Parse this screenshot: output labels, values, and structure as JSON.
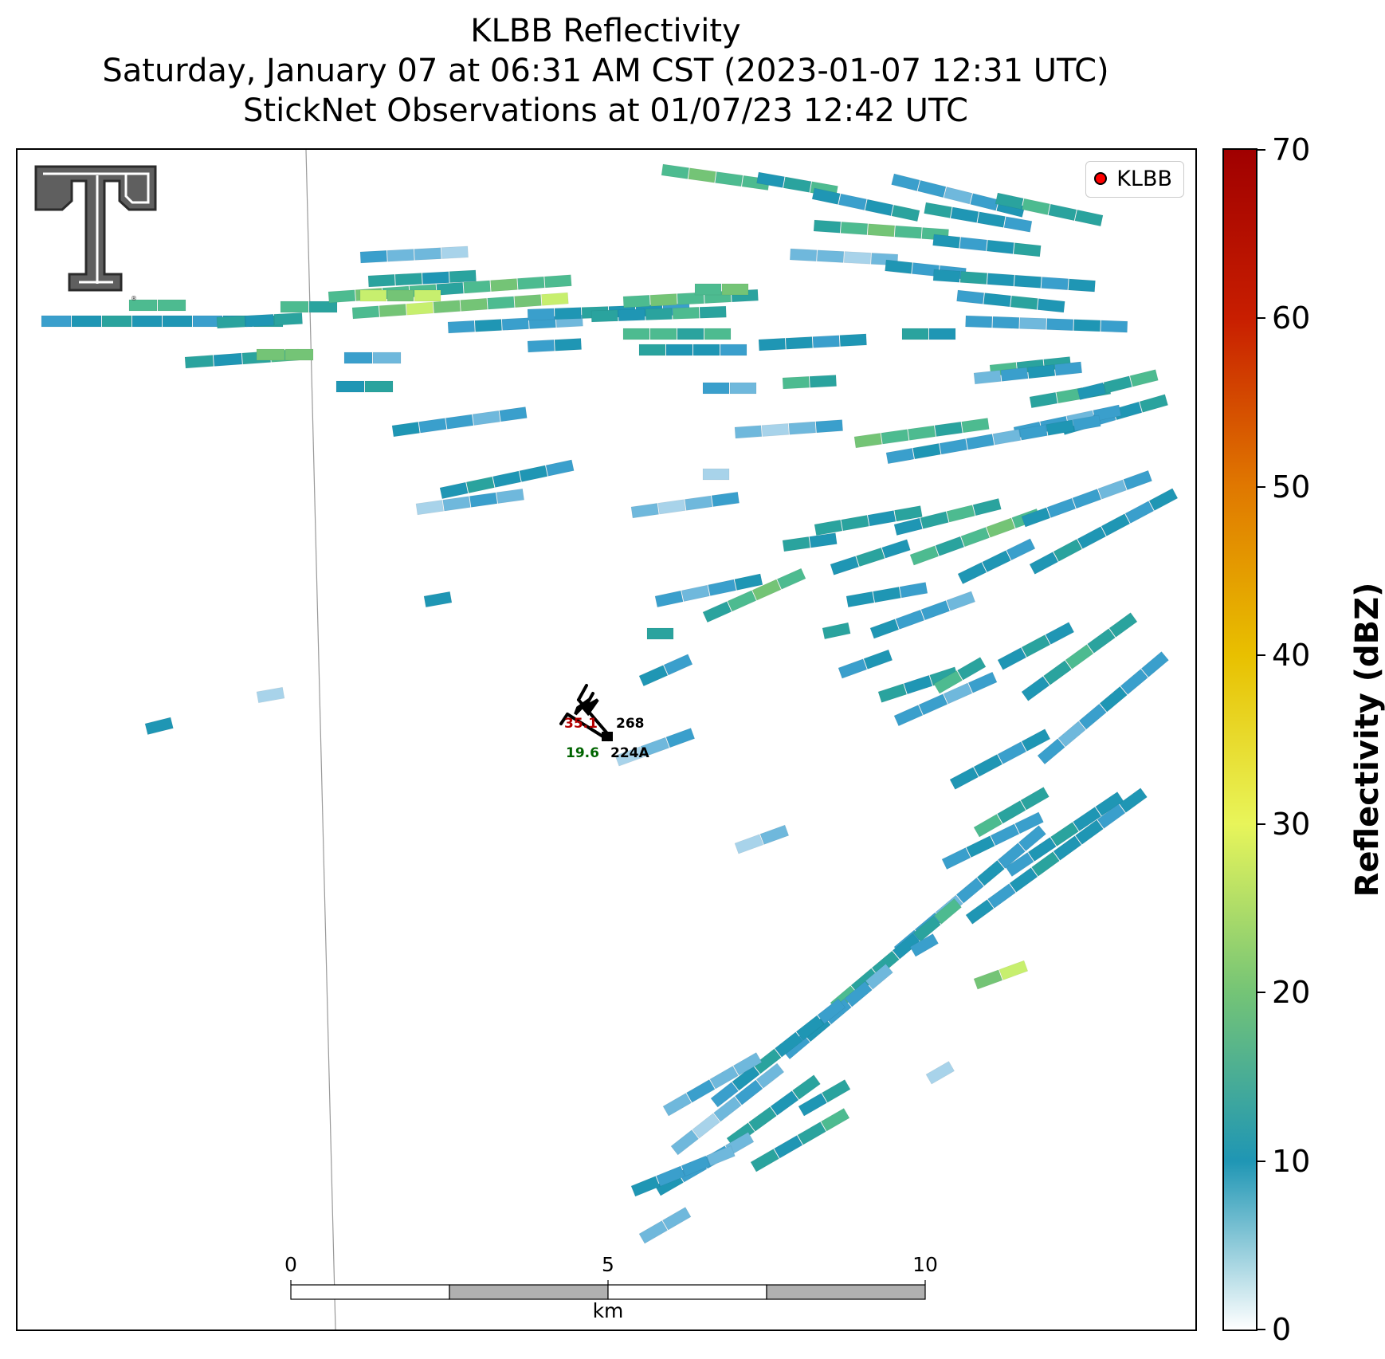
{
  "title": {
    "line1": "KLBB Reflectivity",
    "line2": "Saturday, January 07 at 06:31 AM CST (2023-01-07 12:31 UTC)",
    "line3": "StickNet Observations at 01/07/23 12:42 UTC"
  },
  "legend": {
    "label": "KLBB",
    "marker_color": "#ff0000"
  },
  "logo": {
    "name": "Texas Tech double T logo"
  },
  "colorbar": {
    "label": "Reflectivity (dBZ)",
    "min": 0,
    "max": 70,
    "ticks": [
      "0",
      "10",
      "20",
      "30",
      "40",
      "50",
      "60",
      "70"
    ],
    "colors": [
      "#ffffff",
      "#1f96b4",
      "#74c476",
      "#e8f55a",
      "#e8c000",
      "#e07800",
      "#c81e00",
      "#a00000"
    ]
  },
  "stations": [
    {
      "id": "268",
      "temperature": "35.1",
      "dewpoint": "",
      "barb": "wind barb, from northwest"
    },
    {
      "id": "224A",
      "temperature": "",
      "dewpoint": "19.6",
      "barb": "wind barb, from northwest"
    }
  ],
  "scale_bar": {
    "labels": [
      "0",
      "5",
      "10"
    ],
    "unit": "km"
  },
  "echo_colors": [
    "#ffffff",
    "#dceef8",
    "#a8d3ea",
    "#6fb8dc",
    "#3a9fcc",
    "#1f96b4",
    "#2aa39e",
    "#4dbb90",
    "#74c476",
    "#c7ef6e",
    "#e8f55a"
  ]
}
